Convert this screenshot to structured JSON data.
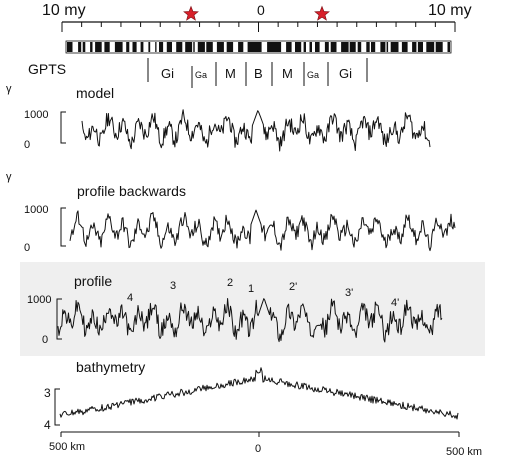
{
  "time_scale": {
    "left_label": "10 my",
    "center_label": "0",
    "right_label": "10 my",
    "star_color": "#d8202a",
    "star_icon": "red-star"
  },
  "gpts": {
    "label": "GPTS",
    "chrons": [
      "Gi",
      "Ga",
      "M",
      "B",
      "M",
      "Ga",
      "Gi"
    ]
  },
  "panels": {
    "model": {
      "title": "model",
      "unit": "γ",
      "ticks": [
        "1000",
        "0"
      ]
    },
    "profile_backwards": {
      "title": "profile backwards",
      "unit": "γ",
      "ticks": [
        "1000",
        "0"
      ]
    },
    "profile": {
      "title": "profile",
      "ticks": [
        "1000",
        "0"
      ],
      "anomaly_labels": [
        "4",
        "3",
        "2",
        "1",
        "2'",
        "3'",
        "4'"
      ]
    },
    "bathymetry": {
      "title": "bathymetry",
      "ticks": [
        "3",
        "4"
      ]
    }
  },
  "distance_axis": {
    "left_label": "500 km",
    "center_label": "0",
    "right_label": "500 km"
  }
}
